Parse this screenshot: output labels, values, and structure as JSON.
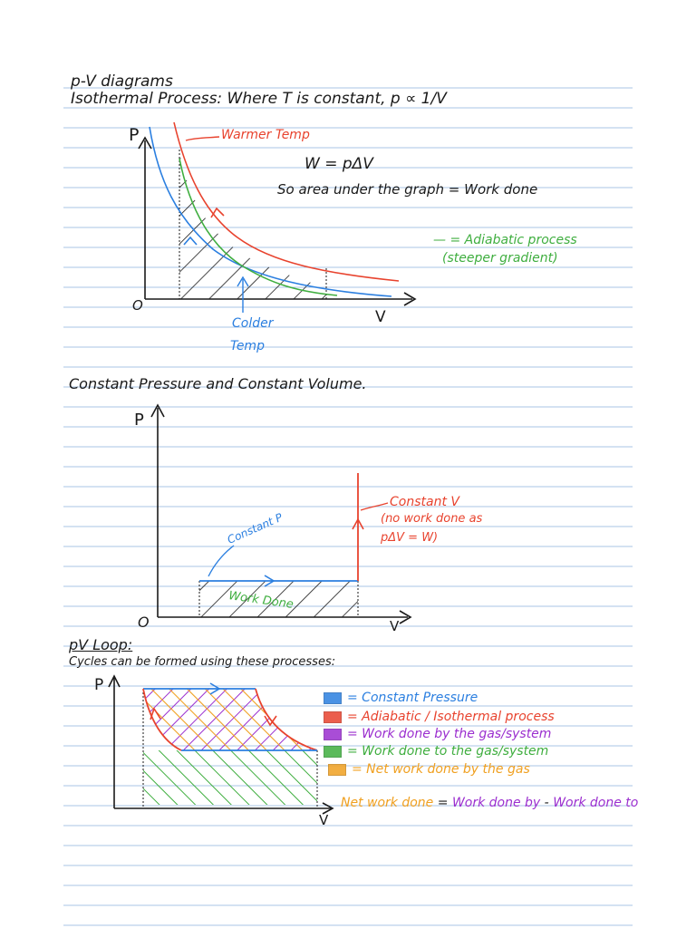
{
  "heading_pv": "p-V diagrams",
  "heading_iso": "Isothermal Process: Where T is constant, p ∝ 1/V",
  "graph1": {
    "p_label": "P",
    "v_label": "V",
    "o_label": "O",
    "warmer": "Warmer Temp",
    "colder_line1": "Colder",
    "colder_line2": "Temp",
    "eq": "W = pΔV",
    "so_area": "So area under the graph = Work done",
    "adiabatic_line1": "— = Adiabatic process",
    "adiabatic_line2": "(steeper gradient)"
  },
  "heading_const": "Constant Pressure and Constant Volume.",
  "graph2": {
    "p_label": "P",
    "v_label": "V",
    "o_label": "O",
    "const_p": "Constant P",
    "const_v1": "Constant V",
    "const_v2": "(no work done as",
    "const_v3": "pΔV = W)",
    "work_done": "Work Done"
  },
  "heading_loop": "pV Loop:",
  "loop_sub": "Cycles can be formed using these processes:",
  "graph3": {
    "p_label": "P",
    "v_label": "V"
  },
  "legend": [
    {
      "color": "#2b7fe0",
      "text": "= Constant Pressure"
    },
    {
      "color": "#e8432e",
      "text": "= Adiabatic / Isothermal process"
    },
    {
      "color": "#9b2fcf",
      "text": "= Work done by the gas/system"
    },
    {
      "color": "#3fae3f",
      "text": "= Work done to the gas/system"
    },
    {
      "color": "#f0a020",
      "text": "= Net work done by the gas"
    }
  ],
  "net_eq": {
    "a": "Net work done",
    "b": " = ",
    "c": "Work done by",
    "d": " - ",
    "e": "Work done to"
  },
  "colors": {
    "ink": "#1a1a1a",
    "red": "#e8432e",
    "blue": "#2b7fe0",
    "green": "#3fae3f",
    "purple": "#9b2fcf",
    "orange": "#f0a020",
    "rule": "#a9c4e6"
  }
}
